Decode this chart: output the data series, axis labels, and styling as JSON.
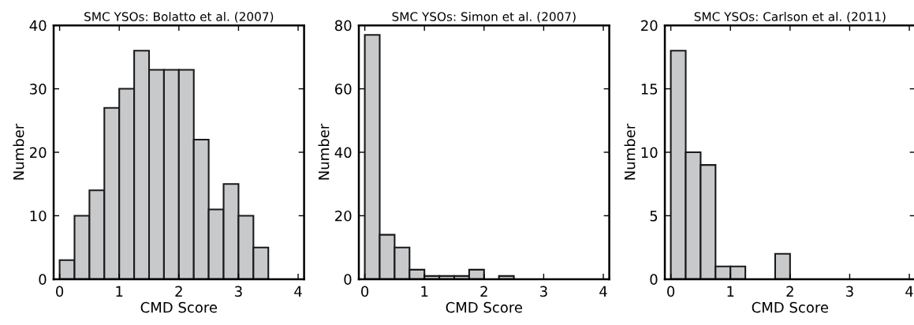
{
  "chart_data": [
    {
      "type": "histogram",
      "title": "SMC YSOs: Bolatto et al. (2007)",
      "xlabel": "CMD Score",
      "ylabel": "Number",
      "bins": [
        0,
        0.25,
        0.5,
        0.75,
        1.0,
        1.25,
        1.5,
        1.75,
        2.0,
        2.25,
        2.5,
        2.75,
        3.0,
        3.25,
        3.5
      ],
      "values": [
        3,
        10,
        14,
        27,
        30,
        36,
        33,
        33,
        33,
        22,
        11,
        15,
        10,
        5
      ],
      "color": "#c8c9cb",
      "xlim": [
        -0.1,
        4.1
      ],
      "ylim": [
        0,
        40
      ],
      "xticks": [
        0,
        1,
        2,
        3,
        4
      ],
      "yticks": [
        0,
        10,
        20,
        30,
        40
      ]
    },
    {
      "type": "histogram",
      "title": "SMC YSOs: Simon et al. (2007)",
      "xlabel": "CMD Score",
      "ylabel": "Number",
      "bins": [
        0,
        0.25,
        0.5,
        0.75,
        1.0,
        1.25,
        1.5,
        1.75,
        2.0,
        2.25,
        2.5
      ],
      "values": [
        77,
        14,
        10,
        3,
        1,
        1,
        1,
        3,
        0,
        1
      ],
      "color": "#c8c9cb",
      "xlim": [
        -0.1,
        4.1
      ],
      "ylim": [
        0,
        80
      ],
      "xticks": [
        0,
        1,
        2,
        3,
        4
      ],
      "yticks": [
        0,
        20,
        40,
        60,
        80
      ]
    },
    {
      "type": "histogram",
      "title": "SMC YSOs: Carlson et al. (2011)",
      "xlabel": "CMD Score",
      "ylabel": "Number",
      "bins": [
        0,
        0.25,
        0.5,
        0.75,
        1.0,
        1.25,
        1.5,
        1.75,
        2.0
      ],
      "values": [
        18,
        10,
        9,
        1,
        1,
        0,
        0,
        2
      ],
      "color": "#c8c9cb",
      "xlim": [
        -0.1,
        4.1
      ],
      "ylim": [
        0,
        20
      ],
      "xticks": [
        0,
        1,
        2,
        3,
        4
      ],
      "yticks": [
        0,
        5,
        10,
        15,
        20
      ]
    }
  ]
}
